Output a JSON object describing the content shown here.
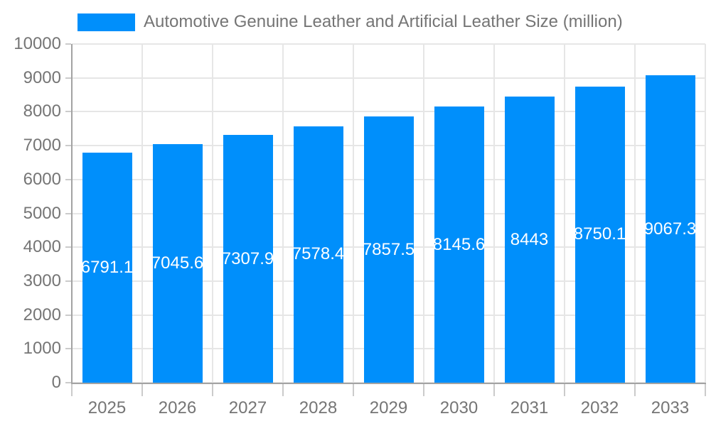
{
  "legend": {
    "label": "Automotive Genuine Leather and Artificial Leather Size (million)"
  },
  "colors": {
    "bar": "#008FFB",
    "grid": "#E6E6E6",
    "axis": "#A3A3A3",
    "tick": "#CBCBCB",
    "label": "#757575",
    "value_label": "#FFFFFF",
    "background": "#FFFFFF"
  },
  "chart_data": {
    "type": "bar",
    "title": "Automotive Genuine Leather and Artificial Leather Size (million)",
    "xlabel": "",
    "ylabel": "",
    "categories": [
      "2025",
      "2026",
      "2027",
      "2028",
      "2029",
      "2030",
      "2031",
      "2032",
      "2033"
    ],
    "values": [
      6791.1,
      7045.6,
      7307.9,
      7578.4,
      7857.5,
      8145.6,
      8443,
      8750.1,
      9067.3
    ],
    "value_labels": [
      "6791.1",
      "7045.6",
      "7307.9",
      "7578.4",
      "7857.5",
      "8145.6",
      "8443",
      "8750.1",
      "9067.3"
    ],
    "ylim": [
      0,
      10000
    ],
    "y_ticks": [
      0,
      1000,
      2000,
      3000,
      4000,
      5000,
      6000,
      7000,
      8000,
      9000,
      10000
    ],
    "y_tick_labels": [
      "0",
      "1000",
      "2000",
      "3000",
      "4000",
      "5000",
      "6000",
      "7000",
      "8000",
      "9000",
      "10000"
    ],
    "grid": true,
    "legend_position": "top-left"
  }
}
